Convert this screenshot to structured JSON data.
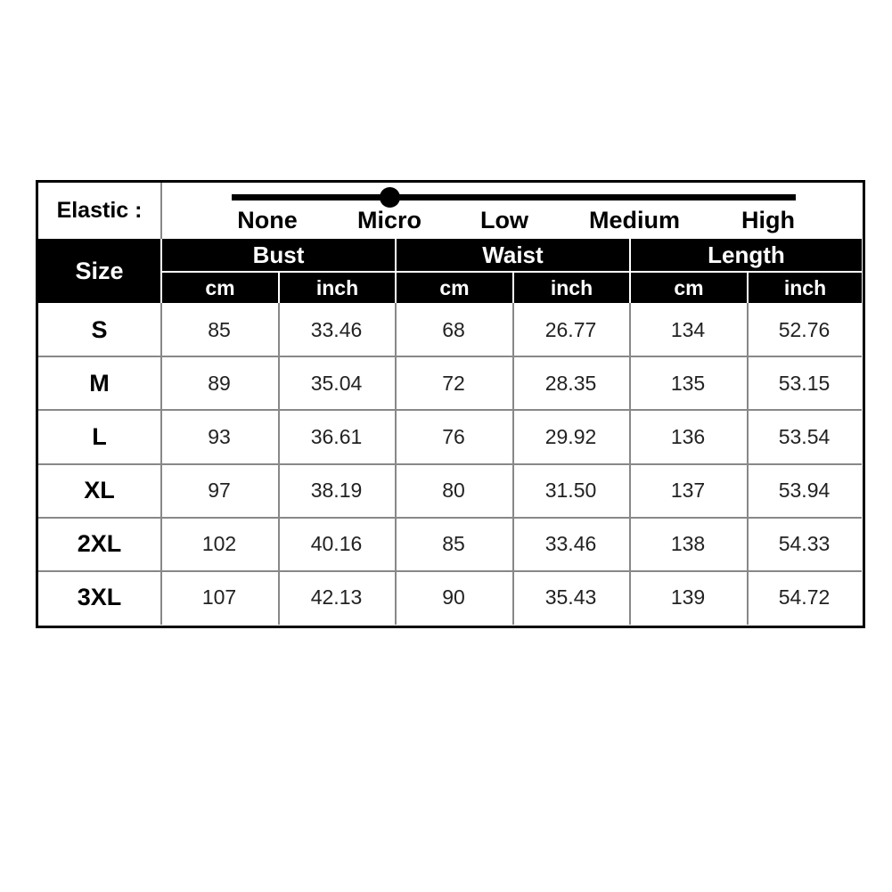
{
  "elastic": {
    "label": "Elastic :",
    "levels": [
      "None",
      "Micro",
      "Low",
      "Medium",
      "High"
    ]
  },
  "table": {
    "size_header": "Size",
    "groups": [
      {
        "name": "Bust",
        "units": [
          "cm",
          "inch"
        ]
      },
      {
        "name": "Waist",
        "units": [
          "cm",
          "inch"
        ]
      },
      {
        "name": "Length",
        "units": [
          "cm",
          "inch"
        ]
      }
    ],
    "rows": [
      [
        "S",
        "85",
        "33.46",
        "68",
        "26.77",
        "134",
        "52.76"
      ],
      [
        "M",
        "89",
        "35.04",
        "72",
        "28.35",
        "135",
        "53.15"
      ],
      [
        "L",
        "93",
        "36.61",
        "76",
        "29.92",
        "136",
        "53.54"
      ],
      [
        "XL",
        "97",
        "38.19",
        "80",
        "31.50",
        "137",
        "53.94"
      ],
      [
        "2XL",
        "102",
        "40.16",
        "85",
        "33.46",
        "138",
        "54.33"
      ],
      [
        "3XL",
        "107",
        "42.13",
        "90",
        "35.43",
        "139",
        "54.72"
      ]
    ]
  }
}
